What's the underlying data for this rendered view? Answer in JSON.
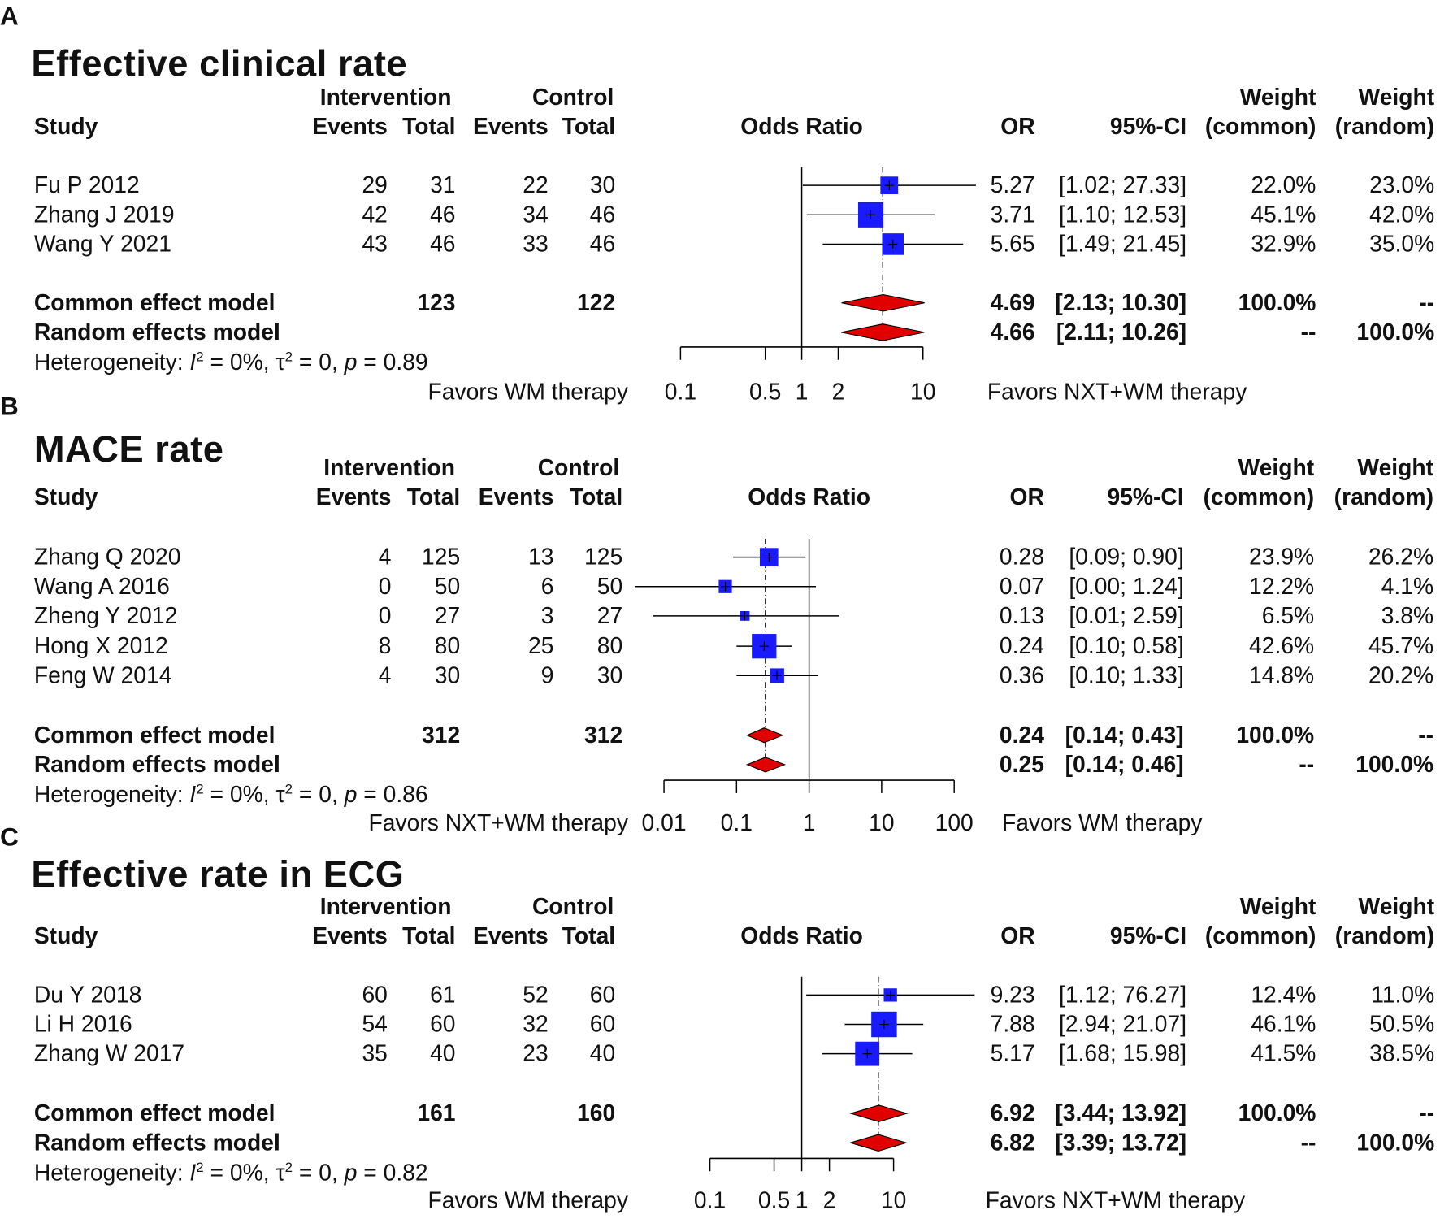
{
  "chart_data": [
    {
      "type": "forest",
      "panel": "A",
      "title": "Effective clinical rate",
      "headers": {
        "group1": "Intervention",
        "group2": "Control",
        "study": "Study",
        "events": "Events",
        "total": "Total",
        "effect": "Odds Ratio",
        "or": "OR",
        "ci": "95%-CI",
        "weight_common_1": "Weight",
        "weight_common_2": "(common)",
        "weight_random_1": "Weight",
        "weight_random_2": "(random)"
      },
      "studies": [
        {
          "study": "Fu P 2012",
          "ev1": "29",
          "tot1": "31",
          "ev2": "22",
          "tot2": "30",
          "or": 5.27,
          "lo": 1.02,
          "hi": 27.33,
          "or_text": "5.27",
          "ci_text": "[1.02; 27.33]",
          "w_common": "22.0%",
          "w_random": "23.0%",
          "w": 22.0
        },
        {
          "study": "Zhang J 2019",
          "ev1": "42",
          "tot1": "46",
          "ev2": "34",
          "tot2": "46",
          "or": 3.71,
          "lo": 1.1,
          "hi": 12.53,
          "or_text": "3.71",
          "ci_text": "[1.10; 12.53]",
          "w_common": "45.1%",
          "w_random": "42.0%",
          "w": 45.1
        },
        {
          "study": "Wang Y 2021",
          "ev1": "43",
          "tot1": "46",
          "ev2": "33",
          "tot2": "46",
          "or": 5.65,
          "lo": 1.49,
          "hi": 21.45,
          "or_text": "5.65",
          "ci_text": "[1.49; 21.45]",
          "w_common": "32.9%",
          "w_random": "35.0%",
          "w": 32.9
        }
      ],
      "common": {
        "label": "Common effect model",
        "tot1": "123",
        "tot2": "122",
        "or": 4.69,
        "lo": 2.13,
        "hi": 10.3,
        "or_text": "4.69",
        "ci_text": "[2.13; 10.30]",
        "w_common": "100.0%",
        "w_random": "--"
      },
      "random": {
        "label": "Random effects model",
        "or": 4.66,
        "lo": 2.11,
        "hi": 10.26,
        "or_text": "4.66",
        "ci_text": "[2.11; 10.26]",
        "w_common": "--",
        "w_random": "100.0%"
      },
      "heterogeneity": {
        "prefix": "Heterogeneity: ",
        "i2": "0%",
        "tau2": "0",
        "p": "0.89"
      },
      "axis": {
        "scale": "log",
        "xlim": [
          0.1,
          10
        ],
        "ticks": [
          "0.1",
          "0.5",
          "1",
          "2",
          "10"
        ]
      },
      "favors_left": "Favors WM therapy",
      "favors_right": "Favors NXT+WM therapy"
    },
    {
      "type": "forest",
      "panel": "B",
      "title": "MACE rate",
      "headers": {
        "group1": "Intervention",
        "group2": "Control",
        "study": "Study",
        "events": "Events",
        "total": "Total",
        "effect": "Odds Ratio",
        "or": "OR",
        "ci": "95%-CI",
        "weight_common_1": "Weight",
        "weight_common_2": "(common)",
        "weight_random_1": "Weight",
        "weight_random_2": "(random)"
      },
      "studies": [
        {
          "study": "Zhang Q 2020",
          "ev1": "4",
          "tot1": "125",
          "ev2": "13",
          "tot2": "125",
          "or": 0.28,
          "lo": 0.09,
          "hi": 0.9,
          "or_text": "0.28",
          "ci_text": "[0.09; 0.90]",
          "w_common": "23.9%",
          "w_random": "26.2%",
          "w": 23.9
        },
        {
          "study": "Wang A 2016",
          "ev1": "0",
          "tot1": "50",
          "ev2": "6",
          "tot2": "50",
          "or": 0.07,
          "lo": 0.004,
          "hi": 1.24,
          "or_text": "0.07",
          "ci_text": "[0.00; 1.24]",
          "w_common": "12.2%",
          "w_random": "4.1%",
          "w": 12.2
        },
        {
          "study": "Zheng Y 2012",
          "ev1": "0",
          "tot1": "27",
          "ev2": "3",
          "tot2": "27",
          "or": 0.13,
          "lo": 0.007,
          "hi": 2.59,
          "or_text": "0.13",
          "ci_text": "[0.01; 2.59]",
          "w_common": "6.5%",
          "w_random": "3.8%",
          "w": 6.5
        },
        {
          "study": "Hong X 2012",
          "ev1": "8",
          "tot1": "80",
          "ev2": "25",
          "tot2": "80",
          "or": 0.24,
          "lo": 0.1,
          "hi": 0.58,
          "or_text": "0.24",
          "ci_text": "[0.10; 0.58]",
          "w_common": "42.6%",
          "w_random": "45.7%",
          "w": 42.6
        },
        {
          "study": "Feng W  2014",
          "ev1": "4",
          "tot1": "30",
          "ev2": "9",
          "tot2": "30",
          "or": 0.36,
          "lo": 0.1,
          "hi": 1.33,
          "or_text": "0.36",
          "ci_text": "[0.10; 1.33]",
          "w_common": "14.8%",
          "w_random": "20.2%",
          "w": 14.8
        }
      ],
      "common": {
        "label": "Common effect model",
        "tot1": "312",
        "tot2": "312",
        "or": 0.24,
        "lo": 0.14,
        "hi": 0.43,
        "or_text": "0.24",
        "ci_text": "[0.14; 0.43]",
        "w_common": "100.0%",
        "w_random": "--"
      },
      "random": {
        "label": "Random effects model",
        "or": 0.25,
        "lo": 0.14,
        "hi": 0.46,
        "or_text": "0.25",
        "ci_text": "[0.14; 0.46]",
        "w_common": "--",
        "w_random": "100.0%"
      },
      "heterogeneity": {
        "prefix": "Heterogeneity: ",
        "i2": "0%",
        "tau2": "0",
        "p": "0.86"
      },
      "axis": {
        "scale": "log",
        "xlim": [
          0.01,
          100
        ],
        "ticks": [
          "0.01",
          "0.1",
          "1",
          "10",
          "100"
        ]
      },
      "favors_left": "Favors NXT+WM therapy",
      "favors_right": "Favors WM therapy"
    },
    {
      "type": "forest",
      "panel": "C",
      "title": "Effective rate in ECG",
      "headers": {
        "group1": "Intervention",
        "group2": "Control",
        "study": "Study",
        "events": "Events",
        "total": "Total",
        "effect": "Odds Ratio",
        "or": "OR",
        "ci": "95%-CI",
        "weight_common_1": "Weight",
        "weight_common_2": "(common)",
        "weight_random_1": "Weight",
        "weight_random_2": "(random)"
      },
      "studies": [
        {
          "study": "Du Y 2018",
          "ev1": "60",
          "tot1": "61",
          "ev2": "52",
          "tot2": "60",
          "or": 9.23,
          "lo": 1.12,
          "hi": 76.27,
          "or_text": "9.23",
          "ci_text": "[1.12; 76.27]",
          "w_common": "12.4%",
          "w_random": "11.0%",
          "w": 12.4
        },
        {
          "study": "Li H 2016",
          "ev1": "54",
          "tot1": "60",
          "ev2": "32",
          "tot2": "60",
          "or": 7.88,
          "lo": 2.94,
          "hi": 21.07,
          "or_text": "7.88",
          "ci_text": "[2.94; 21.07]",
          "w_common": "46.1%",
          "w_random": "50.5%",
          "w": 46.1
        },
        {
          "study": "Zhang W 2017",
          "ev1": "35",
          "tot1": "40",
          "ev2": "23",
          "tot2": "40",
          "or": 5.17,
          "lo": 1.68,
          "hi": 15.98,
          "or_text": "5.17",
          "ci_text": "[1.68; 15.98]",
          "w_common": "41.5%",
          "w_random": "38.5%",
          "w": 41.5
        }
      ],
      "common": {
        "label": "Common effect model",
        "tot1": "161",
        "tot2": "160",
        "or": 6.92,
        "lo": 3.44,
        "hi": 13.92,
        "or_text": "6.92",
        "ci_text": "[3.44; 13.92]",
        "w_common": "100.0%",
        "w_random": "--"
      },
      "random": {
        "label": "Random effects model",
        "or": 6.82,
        "lo": 3.39,
        "hi": 13.72,
        "or_text": "6.82",
        "ci_text": "[3.39; 13.72]",
        "w_common": "--",
        "w_random": "100.0%"
      },
      "heterogeneity": {
        "prefix": "Heterogeneity: ",
        "i2": "0%",
        "tau2": "0",
        "p": "0.82"
      },
      "axis": {
        "scale": "log",
        "xlim": [
          0.1,
          10
        ],
        "ticks": [
          "0.1",
          "0.5",
          "1",
          "2",
          "10"
        ]
      },
      "favors_left": "Favors WM therapy",
      "favors_right": "Favors NXT+WM therapy"
    }
  ],
  "colors": {
    "square": "#1a1aff",
    "diamond": "#e00000",
    "line": "#000000"
  }
}
